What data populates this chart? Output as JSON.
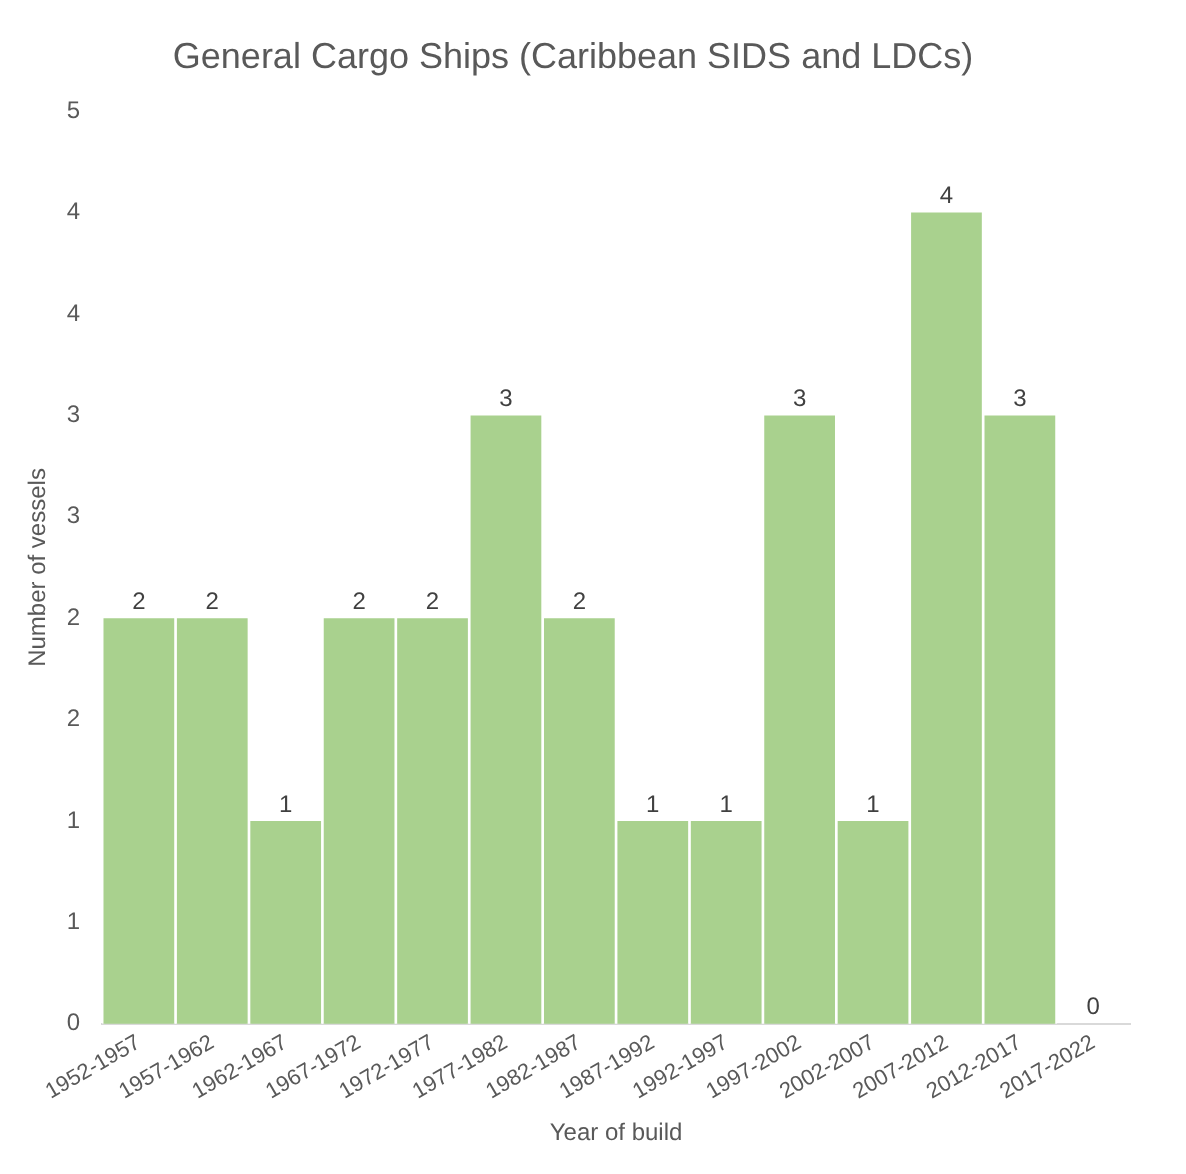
{
  "chart_data": {
    "type": "bar",
    "title": "General Cargo Ships (Caribbean SIDS and LDCs)",
    "xlabel": "Year of build",
    "ylabel": "Number of vessels",
    "categories": [
      "1952-1957",
      "1957-1962",
      "1962-1967",
      "1967-1972",
      "1972-1977",
      "1977-1982",
      "1982-1987",
      "1987-1992",
      "1992-1997",
      "1997-2002",
      "2002-2007",
      "2007-2012",
      "2012-2017",
      "2017-2022"
    ],
    "values": [
      2,
      2,
      1,
      2,
      2,
      3,
      2,
      1,
      1,
      3,
      1,
      4,
      3,
      0
    ],
    "color": "#a9d18e",
    "ylim": [
      0,
      4.5
    ],
    "yticks": [
      0,
      {
        "value": 0.5,
        "label": "1"
      },
      1,
      {
        "value": 1.5,
        "label": "2"
      },
      2,
      {
        "value": 2.5,
        "label": "3"
      },
      3,
      {
        "value": 3.5,
        "label": "4"
      },
      4,
      {
        "value": 4.5,
        "label": "5"
      }
    ],
    "data_labels": true,
    "grid": false,
    "legend": false
  }
}
